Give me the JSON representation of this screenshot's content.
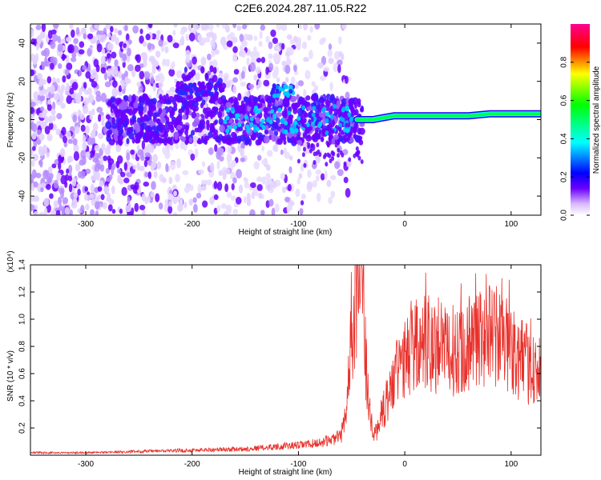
{
  "title": "C2E6.2024.287.11.05.R22",
  "chart_data": [
    {
      "type": "heatmap",
      "xlabel": "Height of straight line (km)",
      "ylabel": "Frequency (Hz)",
      "xlim": [
        -352,
        128
      ],
      "ylim": [
        -50,
        50
      ],
      "xticks": [
        -300,
        -200,
        -100,
        0,
        100
      ],
      "yticks": [
        -40,
        -20,
        0,
        20,
        40
      ],
      "colorbar": {
        "label": "Normalized spectral amplitude",
        "range": [
          0,
          1
        ],
        "ticks": [
          "0.0",
          "0.2",
          "0.4",
          "0.6",
          "0.8"
        ],
        "tick_values": [
          0,
          0.2,
          0.4,
          0.6,
          0.8
        ],
        "colormap": [
          "#ffffff",
          "#d9b8ff",
          "#6a00ff",
          "#0000ff",
          "#00ffff",
          "#00ff00",
          "#ffff00",
          "#ff0000",
          "#ff0090"
        ]
      },
      "ridge": [
        {
          "x": -45,
          "y": 0
        },
        {
          "x": -30,
          "y": 0
        },
        {
          "x": -20,
          "y": 1
        },
        {
          "x": -10,
          "y": 2
        },
        {
          "x": 0,
          "y": 2
        },
        {
          "x": 20,
          "y": 2
        },
        {
          "x": 40,
          "y": 2
        },
        {
          "x": 60,
          "y": 2
        },
        {
          "x": 80,
          "y": 3
        },
        {
          "x": 100,
          "y": 3
        },
        {
          "x": 120,
          "y": 3
        },
        {
          "x": 128,
          "y": 3
        }
      ]
    },
    {
      "type": "line",
      "xlabel": "Height of straight line (km)",
      "ylabel": "SNR (10 * v/v)",
      "multiplier": "(x10⁴)",
      "xlim": [
        -352,
        128
      ],
      "ylim": [
        0,
        1.4
      ],
      "xticks": [
        -300,
        -200,
        -100,
        0,
        100
      ],
      "yticks": [
        0.2,
        0.4,
        0.6,
        0.8,
        1.0,
        1.2,
        1.4
      ],
      "ytick_labels": [
        "0.2",
        "0.4",
        "0.6",
        "0.8",
        "1.0",
        "1.2",
        "1.4"
      ],
      "color": "#e8302a",
      "series": [
        {
          "x": [
            -352,
            -300,
            -250,
            -200,
            -150,
            -120,
            -100,
            -80,
            -60,
            -55,
            -50,
            -46,
            -44,
            -42,
            -40,
            -38,
            -35,
            -30,
            -25,
            -20,
            -15,
            -10,
            -5,
            0,
            10,
            20,
            30,
            40,
            50,
            60,
            70,
            80,
            90,
            100,
            110,
            120,
            128
          ],
          "y": [
            0.02,
            0.02,
            0.03,
            0.04,
            0.05,
            0.07,
            0.08,
            0.1,
            0.15,
            0.3,
            0.9,
            1.25,
            1.3,
            1.35,
            1.3,
            0.9,
            0.45,
            0.15,
            0.2,
            0.35,
            0.45,
            0.55,
            0.65,
            0.7,
            0.8,
            0.85,
            0.8,
            0.75,
            0.8,
            0.85,
            0.85,
            0.9,
            0.85,
            0.8,
            0.7,
            0.65,
            0.6
          ]
        }
      ]
    }
  ]
}
